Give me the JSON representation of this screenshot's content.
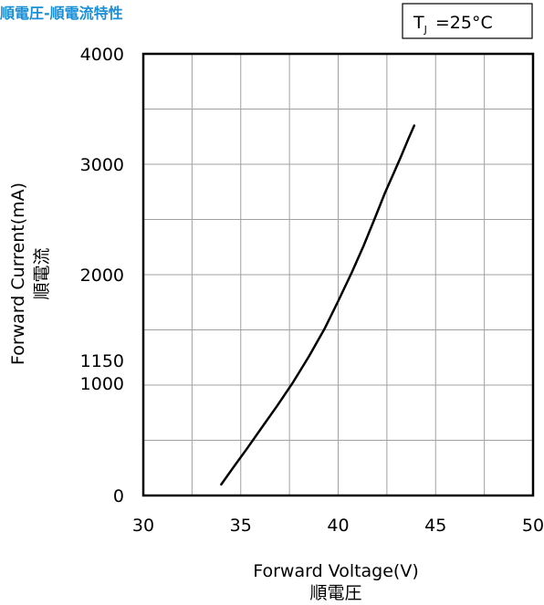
{
  "chart_data": {
    "type": "line",
    "title": "順電圧-順電流特性",
    "condition": {
      "main": "T",
      "subscript": "J",
      "value": "=25°C"
    },
    "xlabel": "Forward Voltage(V)",
    "xlabel_sub": "順電圧",
    "ylabel": "Forward Current(mA)",
    "ylabel_sub": "順電流",
    "xlim": [
      30,
      50
    ],
    "ylim": [
      0,
      4000
    ],
    "x_ticks": [
      30,
      35,
      40,
      45,
      50
    ],
    "y_ticks": [
      0,
      1000,
      1150,
      2000,
      3000,
      4000
    ],
    "x_grid": [
      30,
      32.5,
      35,
      37.5,
      40,
      42.5,
      45,
      47.5,
      50
    ],
    "y_grid": [
      0,
      500,
      1000,
      1500,
      2000,
      2500,
      3000,
      3500,
      4000
    ],
    "grid": true,
    "series": [
      {
        "x": [
          34.0,
          34.6,
          35.3,
          36.1,
          36.9,
          37.7,
          38.5,
          39.3,
          40.0,
          40.7,
          41.3,
          41.9,
          42.4,
          42.8,
          43.2,
          43.6,
          43.9
        ],
        "y": [
          100,
          250,
          420,
          620,
          820,
          1030,
          1260,
          1510,
          1760,
          2020,
          2260,
          2520,
          2740,
          2900,
          3060,
          3230,
          3350
        ]
      }
    ],
    "colors": {
      "line": "#000000",
      "grid": "#a0a0a0",
      "title": "#1a8fd6"
    }
  }
}
